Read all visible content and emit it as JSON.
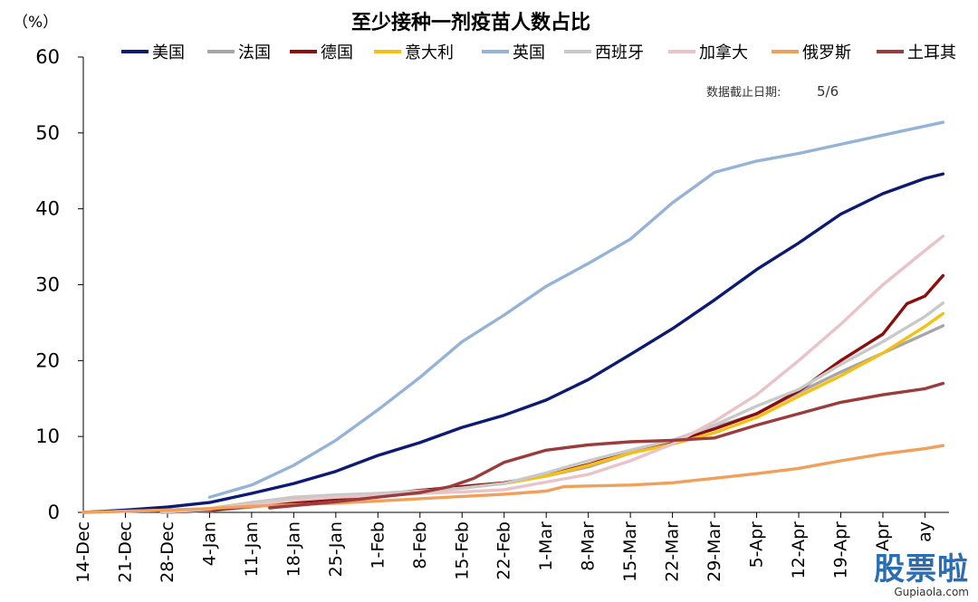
{
  "chart_data": {
    "type": "line",
    "title": "至少接种一剂疫苗人数占比",
    "ylabel": "（%）",
    "note_label": "数据截止日期:",
    "note_value": "5/6",
    "ylim": [
      0,
      60
    ],
    "yticks": [
      0,
      10,
      20,
      30,
      40,
      50,
      60
    ],
    "xlim": [
      "2020-12-14",
      "2021-05-07"
    ],
    "xticks": [
      {
        "date": "2020-12-14",
        "label": "14-Dec"
      },
      {
        "date": "2020-12-21",
        "label": "21-Dec"
      },
      {
        "date": "2020-12-28",
        "label": "28-Dec"
      },
      {
        "date": "2021-01-04",
        "label": "4-Jan"
      },
      {
        "date": "2021-01-11",
        "label": "11-Jan"
      },
      {
        "date": "2021-01-18",
        "label": "18-Jan"
      },
      {
        "date": "2021-01-25",
        "label": "25-Jan"
      },
      {
        "date": "2021-02-01",
        "label": "1-Feb"
      },
      {
        "date": "2021-02-08",
        "label": "8-Feb"
      },
      {
        "date": "2021-02-15",
        "label": "15-Feb"
      },
      {
        "date": "2021-02-22",
        "label": "22-Feb"
      },
      {
        "date": "2021-03-01",
        "label": "1-Mar"
      },
      {
        "date": "2021-03-08",
        "label": "8-Mar"
      },
      {
        "date": "2021-03-15",
        "label": "15-Mar"
      },
      {
        "date": "2021-03-22",
        "label": "22-Mar"
      },
      {
        "date": "2021-03-29",
        "label": "29-Mar"
      },
      {
        "date": "2021-04-05",
        "label": "5-Apr"
      },
      {
        "date": "2021-04-12",
        "label": "12-Apr"
      },
      {
        "date": "2021-04-19",
        "label": "19-Apr"
      },
      {
        "date": "2021-04-26",
        "label": "Apr"
      },
      {
        "date": "2021-05-03",
        "label": "ay"
      }
    ],
    "grid": false,
    "legend_position": "top",
    "series": [
      {
        "name": "美国",
        "color": "#0d1a73",
        "points": [
          [
            "2020-12-14",
            0
          ],
          [
            "2020-12-21",
            0.3
          ],
          [
            "2020-12-28",
            0.7
          ],
          [
            "2021-01-04",
            1.3
          ],
          [
            "2021-01-11",
            2.5
          ],
          [
            "2021-01-18",
            3.8
          ],
          [
            "2021-01-25",
            5.4
          ],
          [
            "2021-02-01",
            7.5
          ],
          [
            "2021-02-08",
            9.2
          ],
          [
            "2021-02-15",
            11.2
          ],
          [
            "2021-02-22",
            12.8
          ],
          [
            "2021-03-01",
            14.8
          ],
          [
            "2021-03-08",
            17.5
          ],
          [
            "2021-03-15",
            20.8
          ],
          [
            "2021-03-22",
            24.2
          ],
          [
            "2021-03-29",
            28.0
          ],
          [
            "2021-04-05",
            32.0
          ],
          [
            "2021-04-12",
            35.5
          ],
          [
            "2021-04-19",
            39.3
          ],
          [
            "2021-04-26",
            42.0
          ],
          [
            "2021-05-03",
            44.0
          ],
          [
            "2021-05-06",
            44.6
          ]
        ]
      },
      {
        "name": "法国",
        "color": "#a6a6a6",
        "points": [
          [
            "2020-12-27",
            0
          ],
          [
            "2021-01-04",
            0.2
          ],
          [
            "2021-01-11",
            0.7
          ],
          [
            "2021-01-18",
            1.3
          ],
          [
            "2021-01-25",
            2.0
          ],
          [
            "2021-02-01",
            2.4
          ],
          [
            "2021-02-08",
            2.9
          ],
          [
            "2021-02-15",
            3.3
          ],
          [
            "2021-02-22",
            3.8
          ],
          [
            "2021-03-01",
            4.8
          ],
          [
            "2021-03-08",
            6.0
          ],
          [
            "2021-03-15",
            7.8
          ],
          [
            "2021-03-22",
            9.5
          ],
          [
            "2021-03-29",
            11.2
          ],
          [
            "2021-04-05",
            13.0
          ],
          [
            "2021-04-12",
            15.8
          ],
          [
            "2021-04-19",
            18.5
          ],
          [
            "2021-04-26",
            21.0
          ],
          [
            "2021-05-03",
            23.5
          ],
          [
            "2021-05-06",
            24.6
          ]
        ]
      },
      {
        "name": "德国",
        "color": "#8b0d0d",
        "points": [
          [
            "2020-12-27",
            0
          ],
          [
            "2021-01-04",
            0.3
          ],
          [
            "2021-01-11",
            0.8
          ],
          [
            "2021-01-18",
            1.3
          ],
          [
            "2021-01-25",
            1.8
          ],
          [
            "2021-02-01",
            2.3
          ],
          [
            "2021-02-08",
            2.9
          ],
          [
            "2021-02-15",
            3.4
          ],
          [
            "2021-02-22",
            3.9
          ],
          [
            "2021-03-01",
            4.9
          ],
          [
            "2021-03-08",
            6.3
          ],
          [
            "2021-03-15",
            8.0
          ],
          [
            "2021-03-22",
            9.3
          ],
          [
            "2021-03-29",
            11.0
          ],
          [
            "2021-04-05",
            13.0
          ],
          [
            "2021-04-12",
            16.0
          ],
          [
            "2021-04-19",
            20.0
          ],
          [
            "2021-04-26",
            23.5
          ],
          [
            "2021-04-30",
            27.5
          ],
          [
            "2021-05-03",
            28.5
          ],
          [
            "2021-05-06",
            31.2
          ]
        ]
      },
      {
        "name": "意大利",
        "color": "#f5c012",
        "points": [
          [
            "2020-12-27",
            0
          ],
          [
            "2021-01-04",
            0.5
          ],
          [
            "2021-01-11",
            1.3
          ],
          [
            "2021-01-18",
            1.8
          ],
          [
            "2021-01-25",
            2.0
          ],
          [
            "2021-02-01",
            2.3
          ],
          [
            "2021-02-08",
            2.7
          ],
          [
            "2021-02-15",
            3.2
          ],
          [
            "2021-02-22",
            3.8
          ],
          [
            "2021-03-01",
            4.8
          ],
          [
            "2021-03-08",
            6.2
          ],
          [
            "2021-03-15",
            7.8
          ],
          [
            "2021-03-22",
            9.0
          ],
          [
            "2021-03-29",
            10.5
          ],
          [
            "2021-04-05",
            12.5
          ],
          [
            "2021-04-12",
            15.3
          ],
          [
            "2021-04-19",
            18.0
          ],
          [
            "2021-04-26",
            21.0
          ],
          [
            "2021-05-03",
            24.5
          ],
          [
            "2021-05-06",
            26.2
          ]
        ]
      },
      {
        "name": "英国",
        "color": "#94b3d6",
        "points": [
          [
            "2021-01-04",
            2.0
          ],
          [
            "2021-01-11",
            3.6
          ],
          [
            "2021-01-18",
            6.2
          ],
          [
            "2021-01-25",
            9.5
          ],
          [
            "2021-02-01",
            13.5
          ],
          [
            "2021-02-08",
            17.8
          ],
          [
            "2021-02-15",
            22.5
          ],
          [
            "2021-02-22",
            26.0
          ],
          [
            "2021-03-01",
            29.8
          ],
          [
            "2021-03-08",
            32.8
          ],
          [
            "2021-03-15",
            36.0
          ],
          [
            "2021-03-22",
            40.8
          ],
          [
            "2021-03-29",
            44.8
          ],
          [
            "2021-04-05",
            46.3
          ],
          [
            "2021-04-12",
            47.3
          ],
          [
            "2021-04-19",
            48.5
          ],
          [
            "2021-04-26",
            49.7
          ],
          [
            "2021-05-03",
            50.9
          ],
          [
            "2021-05-06",
            51.4
          ]
        ]
      },
      {
        "name": "西班牙",
        "color": "#c8c8c8",
        "points": [
          [
            "2020-12-27",
            0
          ],
          [
            "2021-01-04",
            0.4
          ],
          [
            "2021-01-11",
            1.3
          ],
          [
            "2021-01-18",
            2.0
          ],
          [
            "2021-01-25",
            2.3
          ],
          [
            "2021-02-01",
            2.5
          ],
          [
            "2021-02-08",
            2.8
          ],
          [
            "2021-02-15",
            3.2
          ],
          [
            "2021-02-22",
            3.8
          ],
          [
            "2021-03-01",
            5.2
          ],
          [
            "2021-03-08",
            6.8
          ],
          [
            "2021-03-15",
            8.2
          ],
          [
            "2021-03-22",
            9.5
          ],
          [
            "2021-03-29",
            11.5
          ],
          [
            "2021-04-05",
            14.0
          ],
          [
            "2021-04-12",
            16.2
          ],
          [
            "2021-04-19",
            19.5
          ],
          [
            "2021-04-26",
            22.5
          ],
          [
            "2021-05-03",
            25.8
          ],
          [
            "2021-05-06",
            27.6
          ]
        ]
      },
      {
        "name": "加拿大",
        "color": "#e8c3c8",
        "points": [
          [
            "2020-12-14",
            0
          ],
          [
            "2020-12-28",
            0.3
          ],
          [
            "2021-01-04",
            0.5
          ],
          [
            "2021-01-11",
            1.0
          ],
          [
            "2021-01-18",
            1.6
          ],
          [
            "2021-01-25",
            2.0
          ],
          [
            "2021-02-01",
            2.2
          ],
          [
            "2021-02-08",
            2.5
          ],
          [
            "2021-02-15",
            2.7
          ],
          [
            "2021-02-22",
            3.0
          ],
          [
            "2021-03-01",
            4.0
          ],
          [
            "2021-03-08",
            5.0
          ],
          [
            "2021-03-15",
            6.8
          ],
          [
            "2021-03-22",
            9.0
          ],
          [
            "2021-03-29",
            12.0
          ],
          [
            "2021-04-05",
            15.5
          ],
          [
            "2021-04-12",
            20.0
          ],
          [
            "2021-04-19",
            24.8
          ],
          [
            "2021-04-26",
            30.0
          ],
          [
            "2021-05-03",
            34.5
          ],
          [
            "2021-05-06",
            36.4
          ]
        ]
      },
      {
        "name": "俄罗斯",
        "color": "#f0a05a",
        "points": [
          [
            "2020-12-14",
            0
          ],
          [
            "2020-12-28",
            0.3
          ],
          [
            "2021-01-04",
            0.5
          ],
          [
            "2021-01-11",
            0.8
          ],
          [
            "2021-01-18",
            1.0
          ],
          [
            "2021-01-25",
            1.2
          ],
          [
            "2021-02-01",
            1.5
          ],
          [
            "2021-02-08",
            1.8
          ],
          [
            "2021-02-15",
            2.1
          ],
          [
            "2021-02-22",
            2.4
          ],
          [
            "2021-03-01",
            2.8
          ],
          [
            "2021-03-04",
            3.4
          ],
          [
            "2021-03-15",
            3.6
          ],
          [
            "2021-03-22",
            3.9
          ],
          [
            "2021-03-29",
            4.5
          ],
          [
            "2021-04-05",
            5.1
          ],
          [
            "2021-04-12",
            5.8
          ],
          [
            "2021-04-19",
            6.8
          ],
          [
            "2021-04-26",
            7.7
          ],
          [
            "2021-05-03",
            8.4
          ],
          [
            "2021-05-06",
            8.8
          ]
        ]
      },
      {
        "name": "土耳其",
        "color": "#9b3b3b",
        "points": [
          [
            "2021-01-14",
            0.6
          ],
          [
            "2021-01-18",
            0.9
          ],
          [
            "2021-01-25",
            1.4
          ],
          [
            "2021-02-01",
            2.0
          ],
          [
            "2021-02-08",
            2.6
          ],
          [
            "2021-02-13",
            3.4
          ],
          [
            "2021-02-17",
            4.5
          ],
          [
            "2021-02-22",
            6.6
          ],
          [
            "2021-03-01",
            8.2
          ],
          [
            "2021-03-08",
            8.9
          ],
          [
            "2021-03-15",
            9.3
          ],
          [
            "2021-03-22",
            9.5
          ],
          [
            "2021-03-29",
            9.8
          ],
          [
            "2021-04-05",
            11.5
          ],
          [
            "2021-04-12",
            13.0
          ],
          [
            "2021-04-19",
            14.5
          ],
          [
            "2021-04-26",
            15.5
          ],
          [
            "2021-05-03",
            16.3
          ],
          [
            "2021-05-06",
            17.0
          ]
        ]
      }
    ]
  },
  "watermark": {
    "main": "股票啦",
    "sub": "Gupiaola.com"
  }
}
